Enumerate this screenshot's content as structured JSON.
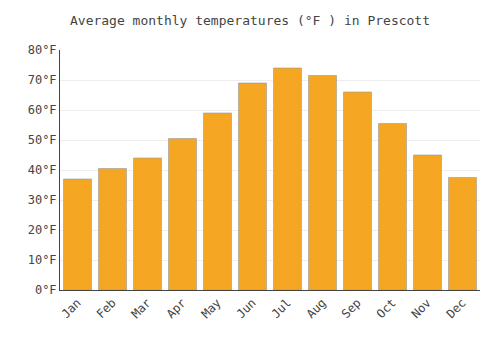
{
  "chart_data": {
    "type": "bar",
    "title": "Average monthly temperatures (°F ) in Prescott",
    "categories": [
      "Jan",
      "Feb",
      "Mar",
      "Apr",
      "May",
      "Jun",
      "Jul",
      "Aug",
      "Sep",
      "Oct",
      "Nov",
      "Dec"
    ],
    "values": [
      37,
      40.5,
      44,
      50.5,
      59,
      69,
      74,
      71.5,
      66,
      55.5,
      45,
      37.5
    ],
    "color": "#F5A623",
    "ylim": [
      0,
      80
    ],
    "yticks": [
      {
        "value": 0,
        "label": "0°F"
      },
      {
        "value": 10,
        "label": "10°F"
      },
      {
        "value": 20,
        "label": "20°F"
      },
      {
        "value": 30,
        "label": "30°F"
      },
      {
        "value": 40,
        "label": "40°F"
      },
      {
        "value": 50,
        "label": "50°F"
      },
      {
        "value": 60,
        "label": "60°F"
      },
      {
        "value": 70,
        "label": "70°F"
      },
      {
        "value": 80,
        "label": "80°F"
      }
    ],
    "grid": true
  }
}
